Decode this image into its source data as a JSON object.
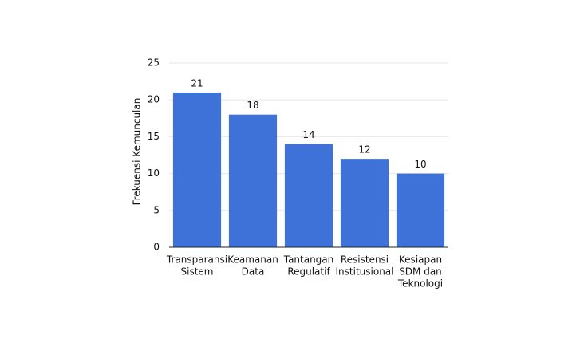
{
  "chart_data": {
    "type": "bar",
    "y_label": "Frekuensi Kemunculan",
    "categories": [
      [
        "Transparansi",
        "Sistem"
      ],
      [
        "Keamanan",
        "Data"
      ],
      [
        "Tantangan",
        "Regulatif"
      ],
      [
        "Resistensi",
        "Institusional"
      ],
      [
        "Kesiapan",
        "SDM dan",
        "Teknologi"
      ]
    ],
    "values": [
      21,
      18,
      14,
      12,
      10
    ],
    "color": "#3f72d9",
    "ylim": [
      0,
      25
    ],
    "yticks": [
      0,
      5,
      10,
      15,
      20,
      25
    ],
    "grid": true
  }
}
